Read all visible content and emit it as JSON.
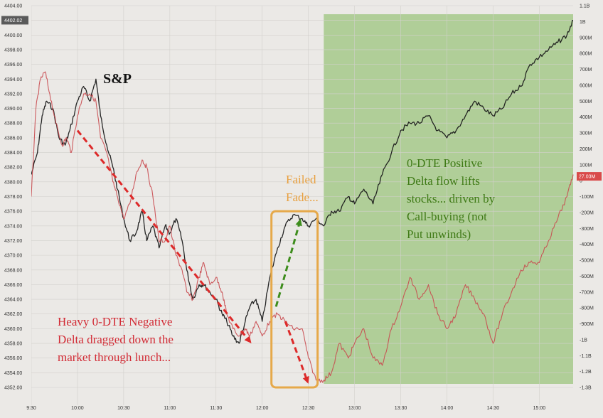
{
  "chart_data": {
    "type": "line",
    "title": "",
    "xlabel": "",
    "ylabel": "",
    "x_ticks": [
      "9:30",
      "10:00",
      "10:30",
      "11:00",
      "11:30",
      "12:00",
      "12:30",
      "13:00",
      "13:30",
      "14:00",
      "14:30",
      "15:00"
    ],
    "x_range": [
      "9:30",
      "15:22"
    ],
    "y_left": {
      "ticks": [
        "4404.00",
        "4402.00",
        "4400.00",
        "4398.00",
        "4396.00",
        "4394.00",
        "4392.00",
        "4390.00",
        "4388.00",
        "4386.00",
        "4384.00",
        "4382.00",
        "4380.00",
        "4378.00",
        "4376.00",
        "4374.00",
        "4372.00",
        "4370.00",
        "4368.00",
        "4366.00",
        "4364.00",
        "4362.00",
        "4360.00",
        "4358.00",
        "4356.00",
        "4354.00",
        "4352.00"
      ],
      "range": [
        4352,
        4404
      ],
      "last_value_badge": "4402.02"
    },
    "y_right": {
      "ticks": [
        "1.1B",
        "1B",
        "900M",
        "800M",
        "700M",
        "600M",
        "500M",
        "400M",
        "300M",
        "200M",
        "100M",
        "0",
        "-100M",
        "-200M",
        "-300M",
        "-400M",
        "-500M",
        "-600M",
        "-700M",
        "-800M",
        "-900M",
        "-1B",
        "-1.1B",
        "-1.2B",
        "-1.3B"
      ],
      "range": [
        -1300000000.0,
        1100000000.0
      ],
      "last_value_badge": "27.03M"
    },
    "grid": true,
    "shaded_region": {
      "from": "12:40",
      "to": "15:22",
      "color": "#a6c98a"
    },
    "series": [
      {
        "name": "S&P",
        "axis": "left",
        "color": "#1a1a1a",
        "points": [
          [
            "9:30",
            4381
          ],
          [
            "9:34",
            4384
          ],
          [
            "9:37",
            4389
          ],
          [
            "9:40",
            4391
          ],
          [
            "9:44",
            4390
          ],
          [
            "9:48",
            4386
          ],
          [
            "9:52",
            4385
          ],
          [
            "9:55",
            4387
          ],
          [
            "10:00",
            4391
          ],
          [
            "10:04",
            4393
          ],
          [
            "10:08",
            4391
          ],
          [
            "10:12",
            4394
          ],
          [
            "10:15",
            4389
          ],
          [
            "10:19",
            4385
          ],
          [
            "10:23",
            4382
          ],
          [
            "10:26",
            4379
          ],
          [
            "10:30",
            4375
          ],
          [
            "10:34",
            4372
          ],
          [
            "10:38",
            4373
          ],
          [
            "10:42",
            4376
          ],
          [
            "10:45",
            4372
          ],
          [
            "10:49",
            4374
          ],
          [
            "10:53",
            4371
          ],
          [
            "10:57",
            4374
          ],
          [
            "11:00",
            4373
          ],
          [
            "11:04",
            4375
          ],
          [
            "11:08",
            4372
          ],
          [
            "11:11",
            4368
          ],
          [
            "11:15",
            4364
          ],
          [
            "11:19",
            4366
          ],
          [
            "11:22",
            4366
          ],
          [
            "11:26",
            4365
          ],
          [
            "11:30",
            4364
          ],
          [
            "11:34",
            4362
          ],
          [
            "11:37",
            4361
          ],
          [
            "11:41",
            4359
          ],
          [
            "11:45",
            4358
          ],
          [
            "11:49",
            4361
          ],
          [
            "11:52",
            4363
          ],
          [
            "11:56",
            4364
          ],
          [
            "12:00",
            4361
          ],
          [
            "12:05",
            4367
          ],
          [
            "12:10",
            4371
          ],
          [
            "12:15",
            4374
          ],
          [
            "12:20",
            4375.5
          ],
          [
            "12:26",
            4375
          ],
          [
            "12:30",
            4374
          ],
          [
            "12:35",
            4375
          ],
          [
            "12:40",
            4374
          ],
          [
            "12:45",
            4376
          ],
          [
            "12:50",
            4376
          ],
          [
            "12:56",
            4378
          ],
          [
            "13:00",
            4377
          ],
          [
            "13:06",
            4379
          ],
          [
            "13:12",
            4377
          ],
          [
            "13:18",
            4381
          ],
          [
            "13:24",
            4384
          ],
          [
            "13:30",
            4387
          ],
          [
            "13:36",
            4388
          ],
          [
            "13:42",
            4388
          ],
          [
            "13:48",
            4389
          ],
          [
            "13:54",
            4387
          ],
          [
            "14:00",
            4386
          ],
          [
            "14:06",
            4387
          ],
          [
            "14:12",
            4389
          ],
          [
            "14:18",
            4391
          ],
          [
            "14:24",
            4390
          ],
          [
            "14:30",
            4389
          ],
          [
            "14:36",
            4390
          ],
          [
            "14:42",
            4392
          ],
          [
            "14:48",
            4393
          ],
          [
            "14:54",
            4396
          ],
          [
            "15:00",
            4397
          ],
          [
            "15:06",
            4398
          ],
          [
            "15:12",
            4399
          ],
          [
            "15:18",
            4400
          ],
          [
            "15:22",
            4402
          ]
        ]
      },
      {
        "name": "0-DTE Delta",
        "axis": "right",
        "color": "#c94a4f",
        "points": [
          [
            "9:30",
            4378
          ],
          [
            "9:33",
            4390
          ],
          [
            "9:36",
            4394
          ],
          [
            "9:39",
            4395
          ],
          [
            "9:42",
            4392
          ],
          [
            "9:46",
            4388
          ],
          [
            "9:50",
            4385
          ],
          [
            "9:53",
            4386
          ],
          [
            "9:56",
            4384
          ],
          [
            "10:00",
            4389
          ],
          [
            "10:04",
            4392
          ],
          [
            "10:08",
            4392
          ],
          [
            "10:12",
            4391
          ],
          [
            "10:15",
            4386
          ],
          [
            "10:19",
            4384
          ],
          [
            "10:23",
            4380
          ],
          [
            "10:26",
            4378
          ],
          [
            "10:30",
            4375
          ],
          [
            "10:34",
            4377
          ],
          [
            "10:38",
            4381
          ],
          [
            "10:42",
            4383
          ],
          [
            "10:45",
            4382
          ],
          [
            "10:49",
            4378
          ],
          [
            "10:53",
            4372
          ],
          [
            "10:57",
            4372
          ],
          [
            "11:00",
            4374
          ],
          [
            "11:04",
            4370
          ],
          [
            "11:08",
            4368
          ],
          [
            "11:11",
            4365
          ],
          [
            "11:15",
            4364
          ],
          [
            "11:19",
            4367
          ],
          [
            "11:22",
            4369
          ],
          [
            "11:26",
            4366
          ],
          [
            "11:30",
            4367
          ],
          [
            "11:34",
            4365
          ],
          [
            "11:37",
            4362
          ],
          [
            "11:41",
            4360
          ],
          [
            "11:45",
            4359
          ],
          [
            "11:49",
            4360
          ],
          [
            "11:52",
            4359
          ],
          [
            "11:56",
            4361
          ],
          [
            "12:00",
            4359
          ],
          [
            "12:05",
            4361
          ],
          [
            "12:10",
            4362
          ],
          [
            "12:15",
            4361
          ],
          [
            "12:20",
            4360
          ],
          [
            "12:26",
            4360
          ],
          [
            "12:30",
            4356
          ],
          [
            "12:35",
            4353
          ],
          [
            "12:40",
            4353
          ],
          [
            "12:45",
            4354
          ],
          [
            "12:50",
            4358
          ],
          [
            "12:56",
            4356
          ],
          [
            "13:00",
            4358
          ],
          [
            "13:06",
            4360
          ],
          [
            "13:12",
            4356
          ],
          [
            "13:18",
            4355
          ],
          [
            "13:24",
            4360
          ],
          [
            "13:30",
            4363
          ],
          [
            "13:36",
            4367
          ],
          [
            "13:42",
            4364
          ],
          [
            "13:48",
            4366
          ],
          [
            "13:54",
            4362
          ],
          [
            "14:00",
            4360
          ],
          [
            "14:06",
            4362
          ],
          [
            "14:12",
            4366
          ],
          [
            "14:18",
            4364
          ],
          [
            "14:24",
            4362
          ],
          [
            "14:30",
            4358
          ],
          [
            "14:36",
            4362
          ],
          [
            "14:42",
            4365
          ],
          [
            "14:48",
            4368
          ],
          [
            "14:54",
            4369
          ],
          [
            "15:00",
            4369
          ],
          [
            "15:06",
            4372
          ],
          [
            "15:12",
            4375
          ],
          [
            "15:18",
            4378
          ],
          [
            "15:22",
            4381
          ]
        ]
      }
    ],
    "annotations": {
      "sp": {
        "text": "S&P",
        "color": "#111111"
      },
      "negative": {
        "lines": [
          "Heavy 0-DTE Negative",
          "Delta dragged down the",
          "market through lunch..."
        ],
        "color": "#d22b35"
      },
      "failed": {
        "lines": [
          "Failed",
          "Fade..."
        ],
        "color": "#e8a040"
      },
      "positive": {
        "lines": [
          "0-DTE Positive",
          "Delta flow lifts",
          "stocks... driven by",
          "Call-buying (not",
          "Put unwinds)"
        ],
        "color": "#3f7a16"
      }
    },
    "arrows": [
      {
        "from": [
          "10:00",
          4387
        ],
        "to": [
          "11:53",
          4358
        ],
        "color": "#dd2a2a"
      },
      {
        "from": [
          "12:09",
          4363
        ],
        "to": [
          "12:25",
          4375
        ],
        "color": "#3e8d1d"
      },
      {
        "from": [
          "12:15",
          4361
        ],
        "to": [
          "12:30",
          4352.5
        ],
        "color": "#dd2a2a"
      }
    ],
    "highlight_box": {
      "from": [
        "12:06",
        4376
      ],
      "to": [
        "12:36",
        4352
      ],
      "color": "#e6a94a"
    }
  }
}
